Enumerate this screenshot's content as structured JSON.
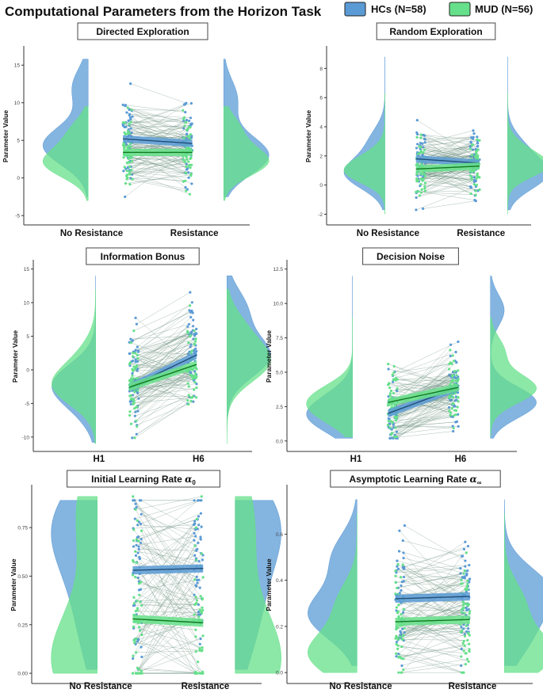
{
  "figure": {
    "title": "Computational Parameters from the Horizon Task",
    "legend": [
      {
        "label": "HCs (N=58)",
        "color": "#5b9bd5"
      },
      {
        "label": "MUD (N=56)",
        "color": "#66e08a"
      }
    ]
  },
  "colors": {
    "hc": "#5b9bd5",
    "mud": "#66e08a",
    "hc_line": "#1f4e79",
    "mud_line": "#0f7a1f",
    "link": "#6b8f80"
  },
  "chart_data": [
    {
      "type": "raincloud",
      "title": "Directed Exploration",
      "math_sub": "",
      "ylabel": "Parameter Value",
      "categories": [
        "No Resistance",
        "Resistance"
      ],
      "ylim": [
        -5.4,
        16.5
      ],
      "yticks": [
        -5,
        0,
        5,
        10,
        15
      ],
      "ytick_labels": [
        "-5",
        "0",
        "5",
        "10",
        "15"
      ],
      "series": [
        {
          "name": "HCs",
          "means": [
            5.2,
            4.6
          ],
          "data_range": [
            -2.5,
            15.8
          ],
          "left_peaks": [
            [
              4.3,
              1.0
            ],
            [
              12.0,
              0.35
            ]
          ],
          "right_peaks": [
            [
              3.0,
              1.0
            ],
            [
              10.5,
              0.3
            ]
          ],
          "spread": 3.2
        },
        {
          "name": "MUD",
          "means": [
            3.4,
            3.4
          ],
          "data_range": [
            -3.0,
            9.5
          ],
          "left_peaks": [
            [
              2.0,
              1.0
            ],
            [
              6.0,
              0.4
            ]
          ],
          "right_peaks": [
            [
              2.2,
              1.0
            ],
            [
              6.5,
              0.35
            ]
          ],
          "spread": 2.4
        }
      ]
    },
    {
      "type": "raincloud",
      "title": "Random Exploration",
      "math_sub": "",
      "ylabel": "Parameter Value",
      "categories": [
        "No Resistance",
        "Resistance"
      ],
      "ylim": [
        -2.3,
        9.0
      ],
      "yticks": [
        -2,
        0,
        2,
        4,
        6,
        8
      ],
      "ytick_labels": [
        "-2",
        "0",
        "2",
        "4",
        "6",
        "8"
      ],
      "series": [
        {
          "name": "HCs",
          "means": [
            1.8,
            1.5
          ],
          "data_range": [
            -1.7,
            8.8
          ],
          "left_peaks": [
            [
              0.8,
              1.0
            ],
            [
              3.0,
              0.35
            ]
          ],
          "right_peaks": [
            [
              0.7,
              1.0
            ],
            [
              2.5,
              0.4
            ]
          ],
          "spread": 1.3
        },
        {
          "name": "MUD",
          "means": [
            1.1,
            1.3
          ],
          "data_range": [
            -2.0,
            6.3
          ],
          "left_peaks": [
            [
              0.9,
              1.0
            ],
            [
              2.0,
              0.3
            ]
          ],
          "right_peaks": [
            [
              1.3,
              1.0
            ],
            [
              2.5,
              0.3
            ]
          ],
          "spread": 1.0
        }
      ]
    },
    {
      "type": "raincloud",
      "title": "Information Bonus",
      "math_sub": "",
      "ylabel": "Parameter Value",
      "categories": [
        "H1",
        "H6"
      ],
      "ylim": [
        -11.2,
        15.2
      ],
      "yticks": [
        -10,
        -5,
        0,
        5,
        10,
        15
      ],
      "ytick_labels": [
        "-10",
        "-5",
        "0",
        "5",
        "10",
        "15"
      ],
      "series": [
        {
          "name": "HCs",
          "means": [
            -2.6,
            2.2
          ],
          "data_range": [
            -10.8,
            14.0
          ],
          "left_peaks": [
            [
              -2.0,
              1.0
            ],
            [
              -6.0,
              0.25
            ]
          ],
          "right_peaks": [
            [
              2.0,
              1.0
            ],
            [
              9.0,
              0.45
            ]
          ],
          "spread": 3.8
        },
        {
          "name": "MUD",
          "means": [
            -2.6,
            0.8
          ],
          "data_range": [
            -11.0,
            12.0
          ],
          "left_peaks": [
            [
              -2.5,
              1.0
            ],
            [
              2.0,
              0.3
            ]
          ],
          "right_peaks": [
            [
              1.0,
              1.0
            ],
            [
              6.0,
              0.4
            ]
          ],
          "spread": 3.6
        }
      ]
    },
    {
      "type": "raincloud",
      "title": "Decision Noise",
      "math_sub": "",
      "ylabel": "Parameter Value",
      "categories": [
        "H1",
        "H6"
      ],
      "ylim": [
        -0.3,
        12.6
      ],
      "yticks": [
        0.0,
        2.5,
        5.0,
        7.5,
        10.0,
        12.5
      ],
      "ytick_labels": [
        "0.0",
        "2.5",
        "5.0",
        "7.5",
        "10.0",
        "12.5"
      ],
      "series": [
        {
          "name": "HCs",
          "means": [
            2.0,
            3.9
          ],
          "data_range": [
            0.2,
            12.0
          ],
          "left_peaks": [
            [
              1.6,
              1.0
            ],
            [
              3.0,
              0.5
            ]
          ],
          "right_peaks": [
            [
              2.8,
              1.0
            ],
            [
              9.5,
              0.3
            ]
          ],
          "spread": 1.4
        },
        {
          "name": "MUD",
          "means": [
            2.8,
            3.9
          ],
          "data_range": [
            0.3,
            9.0
          ],
          "left_peaks": [
            [
              2.0,
              0.9
            ],
            [
              3.3,
              1.0
            ]
          ],
          "right_peaks": [
            [
              3.8,
              1.0
            ],
            [
              6.5,
              0.3
            ]
          ],
          "spread": 1.3
        }
      ]
    },
    {
      "type": "raincloud",
      "title": "Initial Learning Rate ",
      "math_sub": "0",
      "ylabel": "Parameter Value",
      "categories": [
        "No Resistance",
        "Resistance"
      ],
      "ylim": [
        -0.02,
        0.93
      ],
      "yticks": [
        0.0,
        0.25,
        0.5,
        0.75
      ],
      "ytick_labels": [
        "0.00",
        "0.25",
        "0.50",
        "0.75"
      ],
      "series": [
        {
          "name": "HCs",
          "means": [
            0.53,
            0.54
          ],
          "data_range": [
            0.02,
            0.89
          ],
          "left_peaks": [
            [
              0.8,
              1.0
            ],
            [
              0.55,
              0.5
            ],
            [
              0.2,
              0.4
            ]
          ],
          "right_peaks": [
            [
              0.8,
              1.0
            ],
            [
              0.5,
              0.45
            ],
            [
              0.2,
              0.4
            ]
          ],
          "spread": 0.27
        },
        {
          "name": "MUD",
          "means": [
            0.28,
            0.26
          ],
          "data_range": [
            0.0,
            0.91
          ],
          "left_peaks": [
            [
              0.05,
              1.0
            ],
            [
              0.85,
              0.45
            ],
            [
              0.4,
              0.2
            ]
          ],
          "right_peaks": [
            [
              0.05,
              1.0
            ],
            [
              0.8,
              0.4
            ],
            [
              0.4,
              0.2
            ]
          ],
          "spread": 0.3
        }
      ]
    },
    {
      "type": "raincloud",
      "title": "Asymptotic Learning Rate ",
      "math_sub": "∞",
      "ylabel": "Parameter Value",
      "categories": [
        "No Resistance",
        "Resistance"
      ],
      "ylim": [
        -0.02,
        0.78
      ],
      "yticks": [
        0.0,
        0.2,
        0.4,
        0.6
      ],
      "ytick_labels": [
        "0.0",
        "0.2",
        "0.4",
        "0.6"
      ],
      "series": [
        {
          "name": "HCs",
          "means": [
            0.32,
            0.33
          ],
          "data_range": [
            0.03,
            0.75
          ],
          "left_peaks": [
            [
              0.25,
              1.0
            ],
            [
              0.5,
              0.5
            ]
          ],
          "right_peaks": [
            [
              0.35,
              1.0
            ],
            [
              0.15,
              0.5
            ]
          ],
          "spread": 0.13
        },
        {
          "name": "MUD",
          "means": [
            0.22,
            0.23
          ],
          "data_range": [
            0.0,
            0.69
          ],
          "left_peaks": [
            [
              0.08,
              1.0
            ],
            [
              0.3,
              0.4
            ]
          ],
          "right_peaks": [
            [
              0.08,
              1.0
            ],
            [
              0.3,
              0.4
            ]
          ],
          "spread": 0.12
        }
      ]
    }
  ]
}
